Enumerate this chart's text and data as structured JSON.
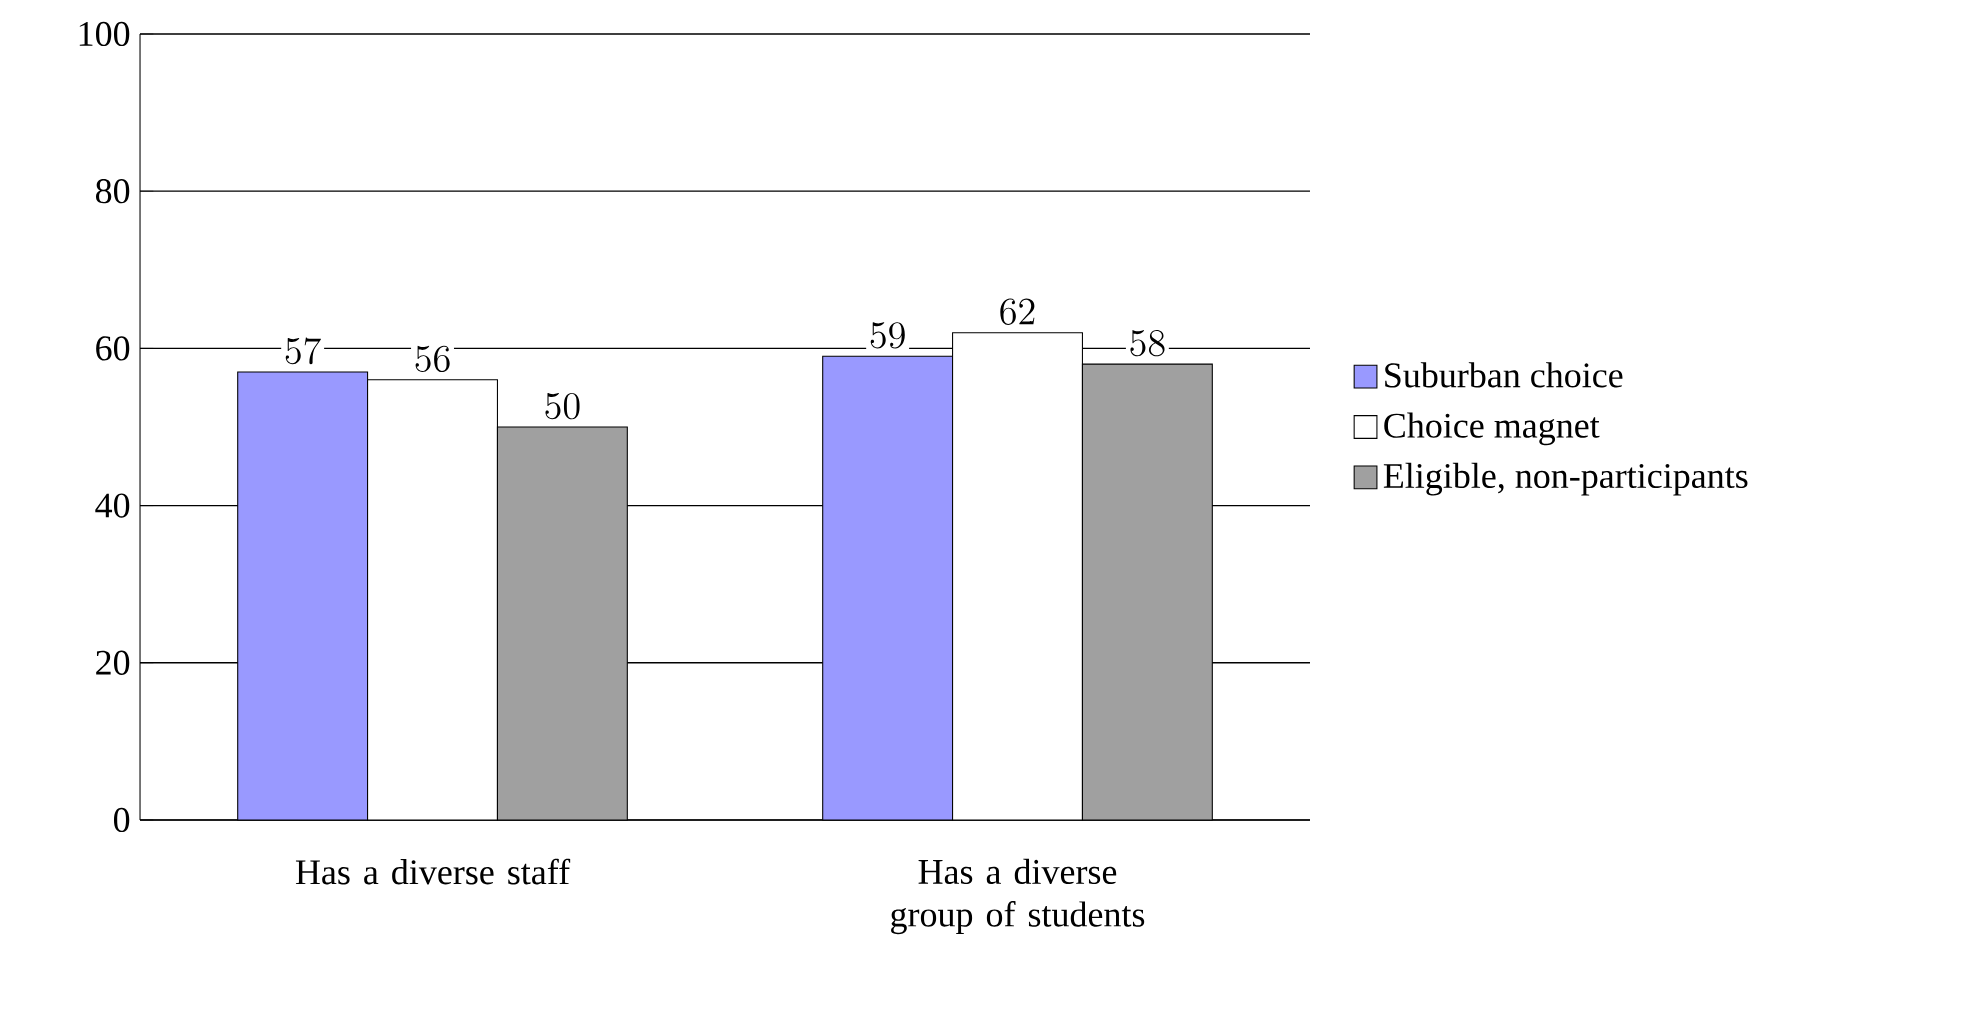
{
  "chart_data": {
    "type": "bar",
    "categories": [
      "Has a diverse staff",
      "Has a diverse group of students"
    ],
    "series": [
      {
        "name": "Suburban choice",
        "color": "#9999ff",
        "values": [
          57,
          59
        ]
      },
      {
        "name": "Choice magnet",
        "color": "#ffffff",
        "values": [
          56,
          62
        ]
      },
      {
        "name": "Eligible, non-participants",
        "color": "#a0a0a0",
        "values": [
          50,
          58
        ]
      }
    ],
    "ylim": [
      0,
      100
    ],
    "yticks": [
      0,
      20,
      40,
      60,
      80,
      100
    ],
    "grid": "y",
    "legend": "right",
    "data_labels": true
  }
}
